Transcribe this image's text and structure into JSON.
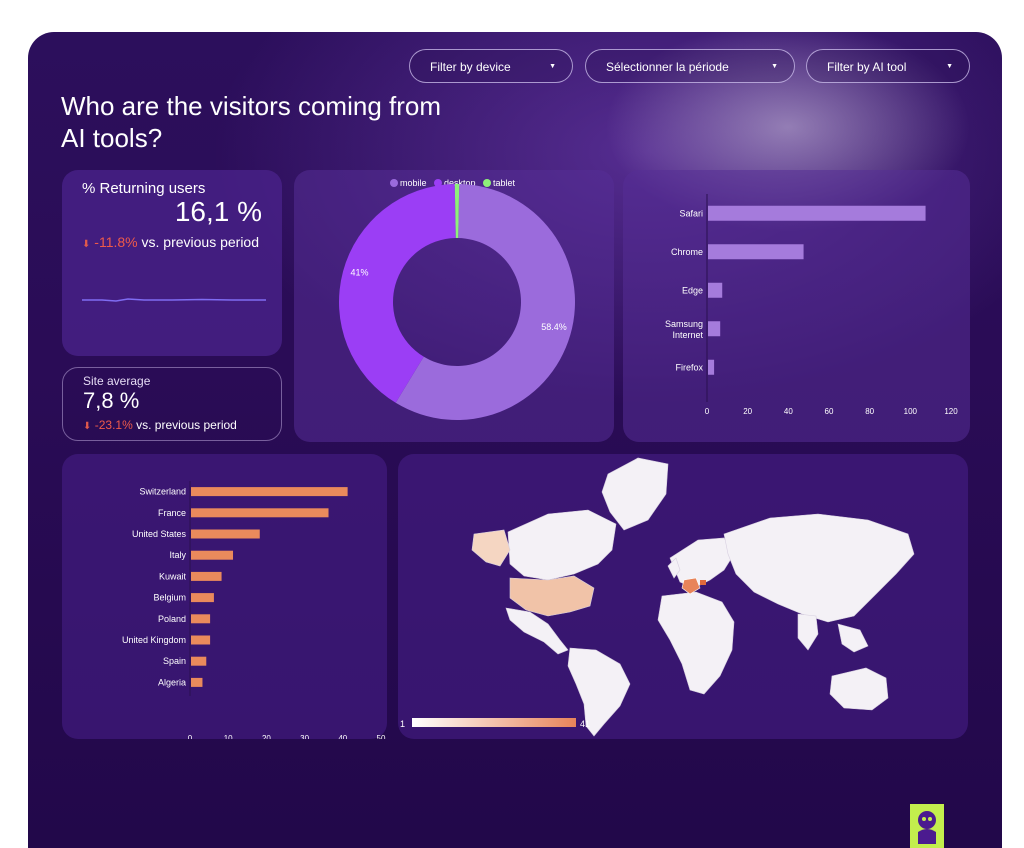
{
  "filters": {
    "device_label": "Filter by device",
    "period_label": "Sélectionner la période",
    "ai_tool_label": "Filter by AI tool"
  },
  "page_title": "Who are the visitors coming from AI tools?",
  "returning": {
    "label": "% Returning users",
    "value": "16,1 %",
    "change": "-11.8%",
    "change_suffix": "vs. previous period"
  },
  "site_avg": {
    "label": "Site average",
    "value": "7,8 %",
    "change": "-23.1%",
    "change_suffix": "vs. previous period"
  },
  "colors": {
    "mobile": "#9b6bdc",
    "desktop": "#9b3ef5",
    "tablet": "#8ef07a",
    "browser_bar": "#a57bdc",
    "country_bar": "#ea8a5c",
    "map_high": "#e8845a",
    "map_low": "#ffffff"
  },
  "icons": [
    "arrow-down-icon",
    "caret-down-icon",
    "brand-logo-icon"
  ],
  "chart_data": [
    {
      "type": "pie",
      "variant": "donut",
      "legend_position": "top",
      "labels": [
        "mobile",
        "desktop",
        "tablet"
      ],
      "values": [
        58.4,
        41,
        0.6
      ],
      "data_labels": [
        "58.4%",
        "41%",
        ""
      ]
    },
    {
      "type": "bar",
      "orientation": "horizontal",
      "categories": [
        "Safari",
        "Chrome",
        "Edge",
        "Samsung Internet",
        "Firefox"
      ],
      "values": [
        107,
        47,
        7,
        6,
        3
      ],
      "xlim": [
        0,
        120
      ],
      "xticks": [
        "0",
        "20",
        "40",
        "60",
        "80",
        "100",
        "120"
      ]
    },
    {
      "type": "bar",
      "orientation": "horizontal",
      "categories": [
        "Switzerland",
        "France",
        "United States",
        "Italy",
        "Kuwait",
        "Belgium",
        "Poland",
        "United Kingdom",
        "Spain",
        "Algeria"
      ],
      "values": [
        41,
        36,
        18,
        11,
        8,
        6,
        5,
        5,
        4,
        3
      ],
      "xlim": [
        0,
        50
      ],
      "xticks": [
        "0",
        "10",
        "20",
        "30",
        "40",
        "50"
      ]
    },
    {
      "type": "heatmap",
      "variant": "world-map",
      "scale_min": "1",
      "scale_max": "41",
      "highlighted": [
        "Switzerland",
        "France",
        "United States",
        "Canada",
        "Italy"
      ]
    }
  ]
}
